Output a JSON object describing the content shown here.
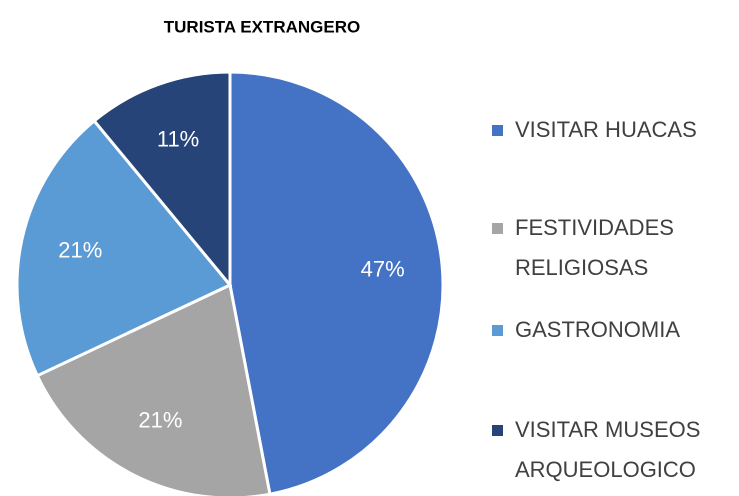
{
  "chart_data": {
    "type": "pie",
    "title": "TURISTA EXTRANGERO",
    "categories": [
      "VISITAR HUACAS",
      "FESTIVIDADES RELIGIOSAS",
      "GASTRONOMIA",
      "VISITAR MUSEOS ARQUEOLOGICO"
    ],
    "values": [
      47,
      21,
      21,
      11
    ],
    "value_labels": [
      "47%",
      "21%",
      "21%",
      "11%"
    ],
    "colors": [
      "#4472c4",
      "#a5a5a5",
      "#5b9bd5",
      "#264478"
    ],
    "legend": "right"
  }
}
